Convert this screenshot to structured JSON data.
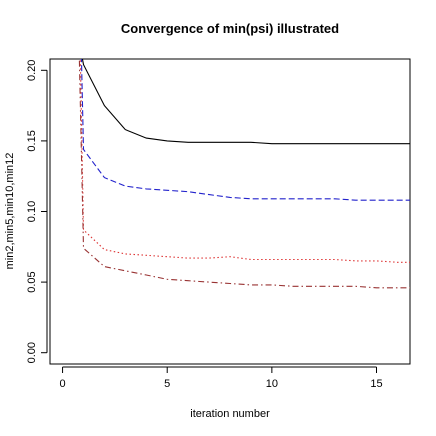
{
  "chart_data": {
    "type": "line",
    "title": "Convergence of min(psi) illustrated",
    "xlabel": "iteration number",
    "ylabel": "min2,min5,min10,min12",
    "xlim": [
      -0.6,
      16.6
    ],
    "ylim": [
      -0.008,
      0.208
    ],
    "x_ticks": [
      0,
      5,
      10,
      15
    ],
    "y_ticks": [
      0.0,
      0.05,
      0.1,
      0.15,
      0.2
    ],
    "y_tick_labels": [
      "0.00",
      "0.05",
      "0.10",
      "0.15",
      "0.20"
    ],
    "grid": false,
    "series": [
      {
        "color": "#000000",
        "dash": "solid",
        "x": [
          0.7,
          0.8,
          0.9,
          1,
          2,
          3,
          4,
          5,
          6,
          7,
          8,
          9,
          10,
          11,
          12,
          13,
          14,
          15,
          16,
          16.6
        ],
        "y": [
          0.21,
          0.212,
          0.212,
          0.204,
          0.175,
          0.158,
          0.152,
          0.15,
          0.149,
          0.149,
          0.149,
          0.149,
          0.148,
          0.148,
          0.148,
          0.148,
          0.148,
          0.148,
          0.148,
          0.148
        ]
      },
      {
        "color": "#2222cc",
        "dash": "dashed",
        "x": [
          0.9,
          1,
          2,
          3,
          4,
          5,
          6,
          7,
          8,
          9,
          10,
          11,
          12,
          13,
          14,
          15,
          16,
          16.6
        ],
        "y": [
          0.21,
          0.144,
          0.124,
          0.118,
          0.116,
          0.115,
          0.114,
          0.112,
          0.11,
          0.109,
          0.109,
          0.109,
          0.109,
          0.109,
          0.108,
          0.108,
          0.108,
          0.108
        ]
      },
      {
        "color": "#dd3333",
        "dash": "dotted",
        "x": [
          0.85,
          1,
          2,
          3,
          4,
          5,
          6,
          7,
          8,
          9,
          10,
          11,
          12,
          13,
          14,
          15,
          16,
          16.6
        ],
        "y": [
          0.21,
          0.087,
          0.073,
          0.07,
          0.069,
          0.068,
          0.067,
          0.067,
          0.068,
          0.066,
          0.066,
          0.066,
          0.066,
          0.066,
          0.065,
          0.065,
          0.064,
          0.064
        ]
      },
      {
        "color": "#993333",
        "dash": "dashdot",
        "x": [
          0.8,
          1,
          2,
          3,
          4,
          5,
          6,
          7,
          8,
          9,
          10,
          11,
          12,
          13,
          14,
          15,
          16,
          16.6
        ],
        "y": [
          0.21,
          0.074,
          0.061,
          0.058,
          0.055,
          0.052,
          0.051,
          0.05,
          0.049,
          0.048,
          0.048,
          0.047,
          0.047,
          0.047,
          0.047,
          0.046,
          0.046,
          0.046
        ]
      }
    ]
  }
}
